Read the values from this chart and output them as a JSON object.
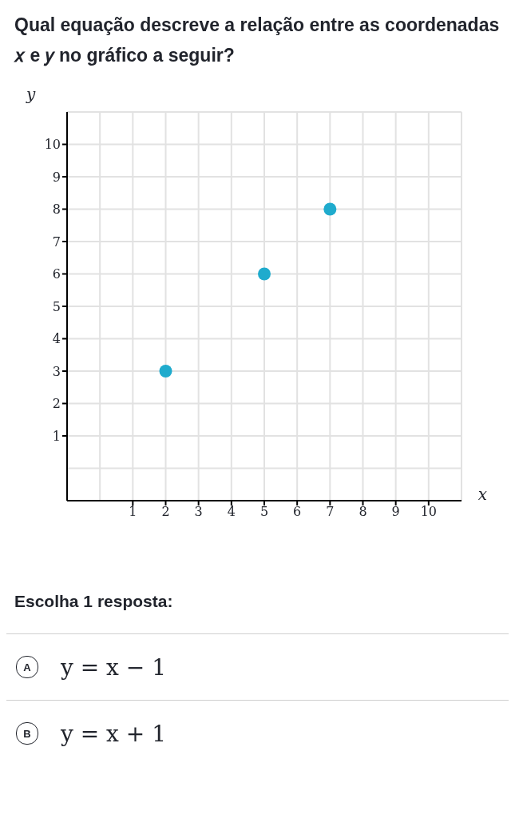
{
  "chart_data": {
    "type": "scatter",
    "title": "Qual equação descreve a relação entre as coordenadas 𝑥 e 𝑦 no gráfico a seguir?",
    "xlabel": "x",
    "ylabel": "y",
    "x": [
      2,
      5,
      7
    ],
    "values": [
      3,
      6,
      8
    ],
    "color": "#1fabcd",
    "marker": "circle",
    "xlim": [
      -1,
      11
    ],
    "ylim": [
      -1,
      11
    ],
    "xticks": [
      1,
      2,
      3,
      4,
      5,
      6,
      7,
      8,
      9,
      10
    ],
    "yticks": [
      1,
      2,
      3,
      4,
      5,
      6,
      7,
      8,
      9,
      10
    ],
    "grid": true,
    "annotations": [
      "Escolha 1 resposta:",
      "A",
      "y = x − 1",
      "B",
      "y = x + 1"
    ]
  }
}
